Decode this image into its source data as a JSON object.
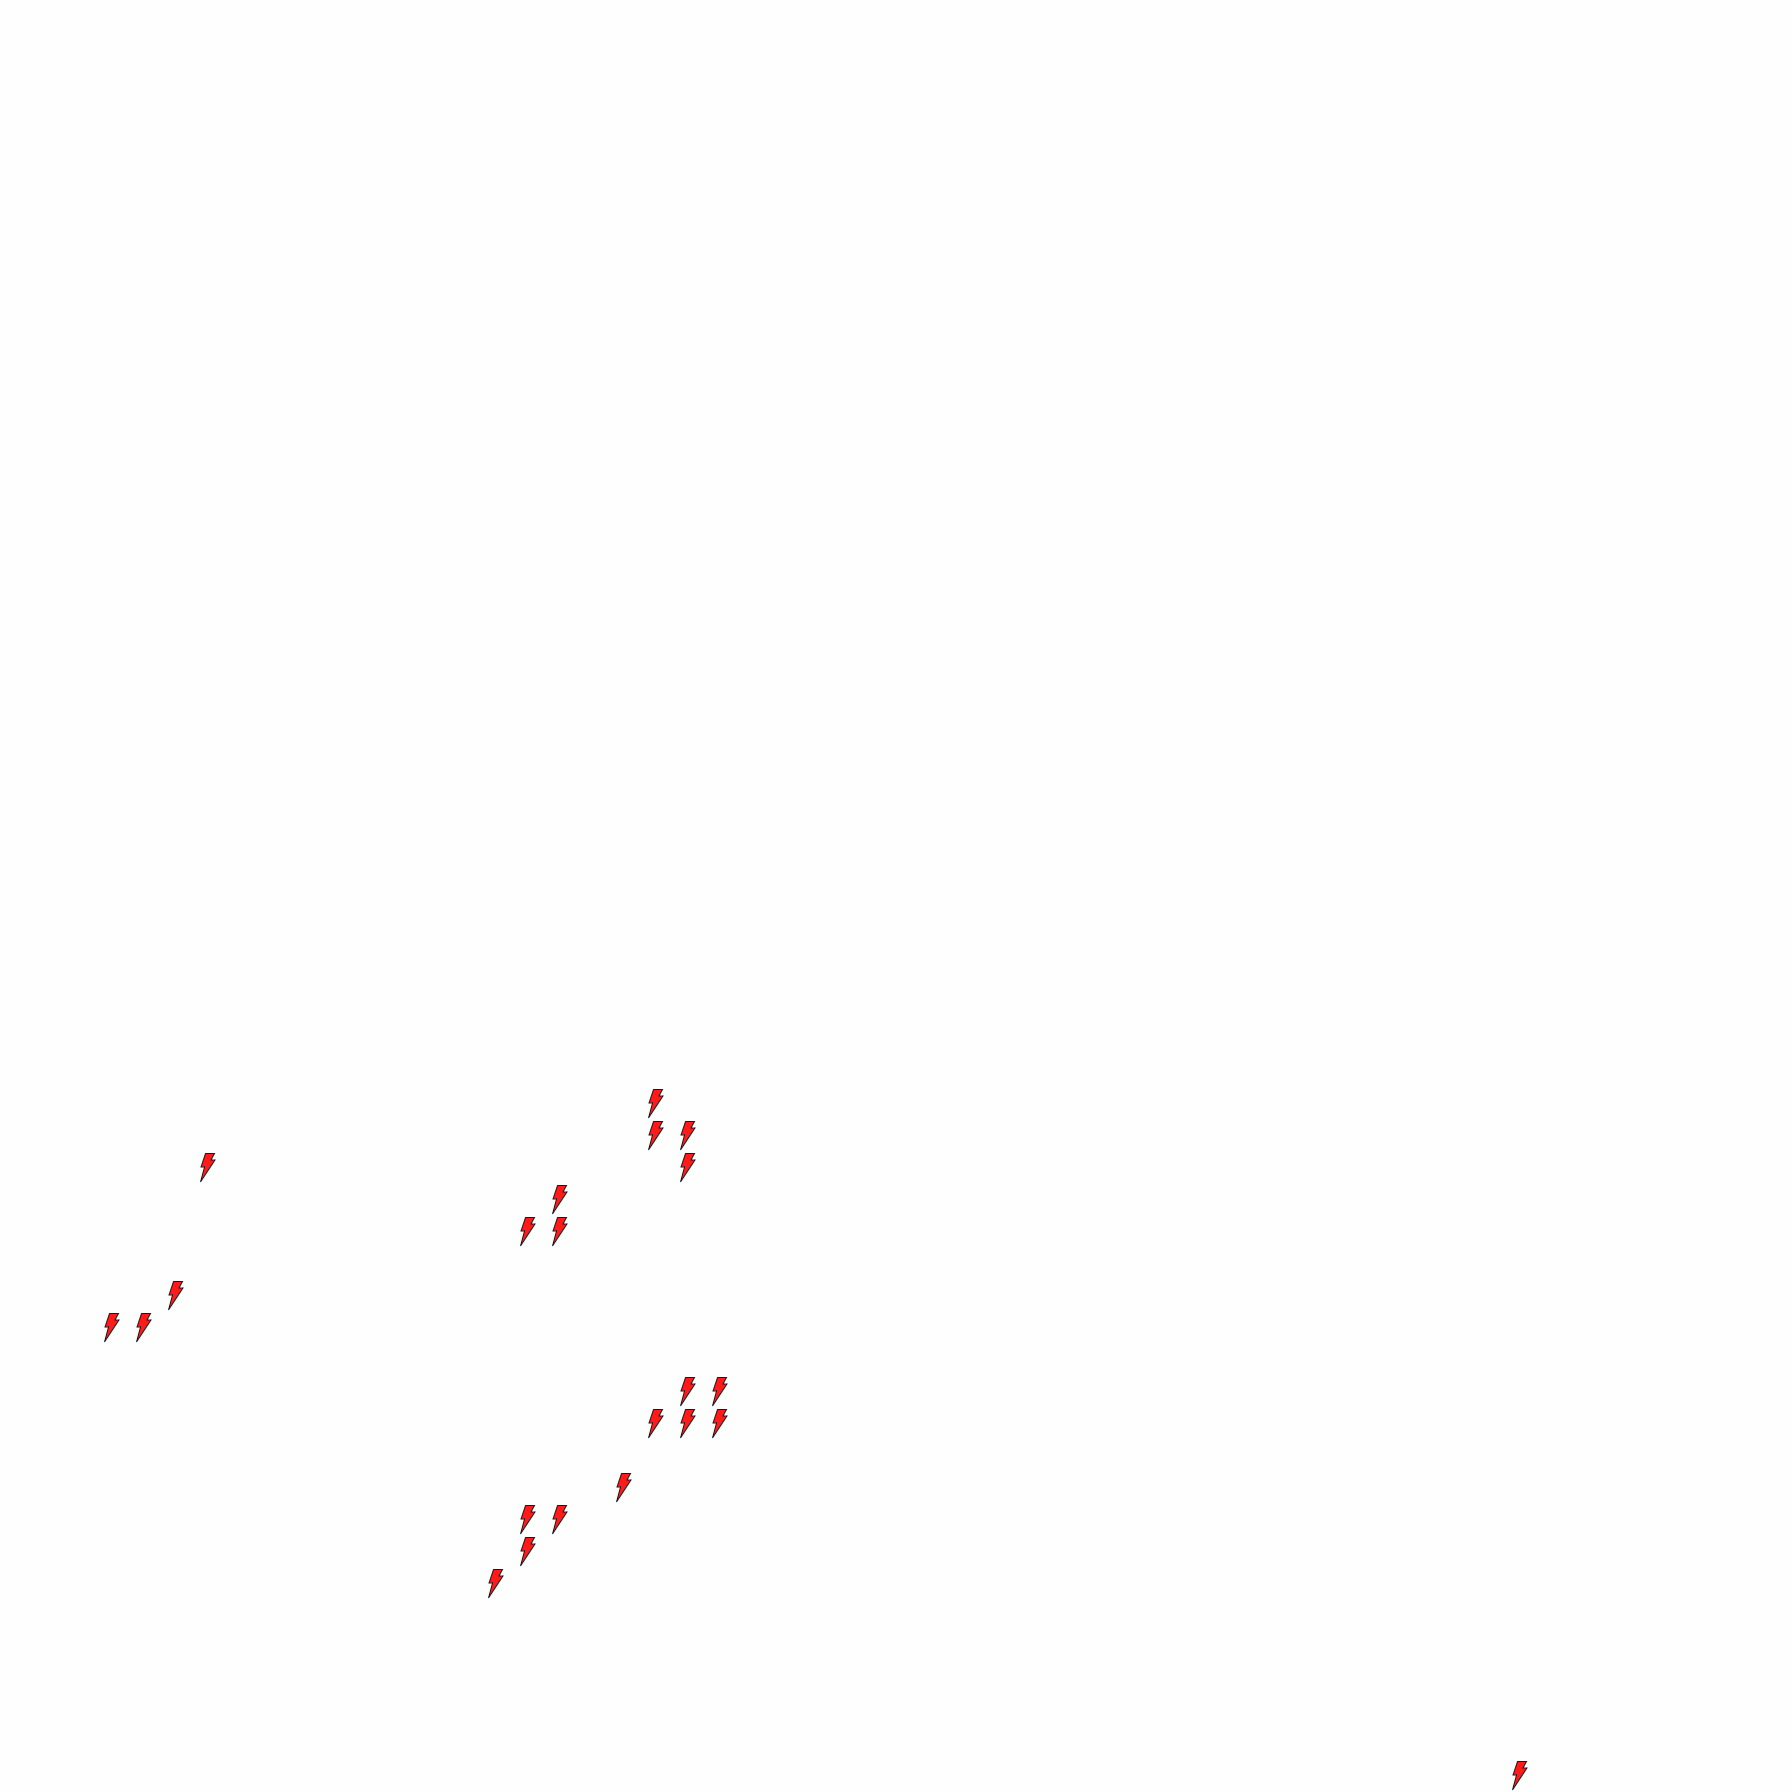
{
  "map": {
    "background_color": "#fefefe",
    "marker_icon": "lightning-bolt-icon",
    "marker_fill": "#ff1a1a",
    "marker_stroke": "#1a1a1a",
    "marker_count": 22
  }
}
